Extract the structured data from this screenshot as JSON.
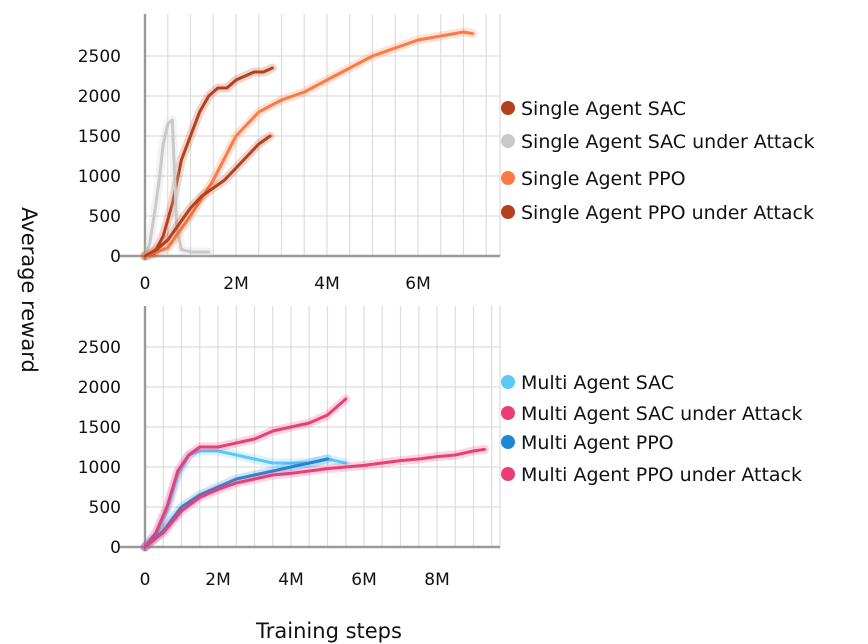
{
  "figure": {
    "ylabel": "Average reward",
    "xlabel": "Training steps"
  },
  "chart_data": [
    {
      "type": "line",
      "xlim": [
        0,
        7500000
      ],
      "ylim": [
        0,
        2900
      ],
      "xticks": [
        0,
        2000000,
        4000000,
        6000000
      ],
      "xtick_labels": [
        "0",
        "2M",
        "4M",
        "6M"
      ],
      "yticks": [
        0,
        500,
        1000,
        1500,
        2000,
        2500
      ],
      "ytick_labels": [
        "0",
        "500",
        "1000",
        "1500",
        "2000",
        "2500"
      ],
      "grid": true,
      "legend_position": "right",
      "series": [
        {
          "name": "Single Agent SAC",
          "color": "#b5401d",
          "x": [
            0,
            200000,
            400000,
            600000,
            800000,
            1000000,
            1200000,
            1400000,
            1600000,
            1800000,
            2000000,
            2200000,
            2400000,
            2600000,
            2800000
          ],
          "y": [
            0,
            30,
            250,
            650,
            1200,
            1500,
            1800,
            2000,
            2100,
            2100,
            2200,
            2250,
            2300,
            2300,
            2350
          ]
        },
        {
          "name": "Single Agent SAC under Attack",
          "color": "#c9c9c9",
          "x": [
            0,
            100000,
            200000,
            300000,
            400000,
            500000,
            600000,
            700000,
            800000,
            1000000,
            1400000
          ],
          "y": [
            0,
            150,
            500,
            900,
            1400,
            1650,
            1700,
            350,
            80,
            50,
            50
          ]
        },
        {
          "name": "Single Agent PPO",
          "color": "#f97b45",
          "x": [
            0,
            500000,
            1000000,
            1500000,
            2000000,
            2500000,
            3000000,
            3500000,
            4000000,
            4500000,
            5000000,
            5500000,
            6000000,
            6500000,
            7000000,
            7200000
          ],
          "y": [
            0,
            100,
            500,
            950,
            1500,
            1800,
            1950,
            2050,
            2200,
            2350,
            2500,
            2600,
            2700,
            2750,
            2800,
            2780
          ]
        },
        {
          "name": "Single Agent PPO under Attack",
          "color": "#b5401d",
          "x": [
            0,
            250000,
            500000,
            750000,
            1000000,
            1250000,
            1500000,
            1750000,
            2000000,
            2250000,
            2500000,
            2750000
          ],
          "y": [
            0,
            80,
            200,
            400,
            600,
            750,
            850,
            950,
            1100,
            1250,
            1400,
            1500
          ]
        }
      ]
    },
    {
      "type": "line",
      "xlim": [
        0,
        9500000
      ],
      "ylim": [
        0,
        2900
      ],
      "xticks": [
        0,
        2000000,
        4000000,
        6000000,
        8000000
      ],
      "xtick_labels": [
        "0",
        "2M",
        "4M",
        "6M",
        "8M"
      ],
      "yticks": [
        0,
        500,
        1000,
        1500,
        2000,
        2500
      ],
      "ytick_labels": [
        "0",
        "500",
        "1000",
        "1500",
        "2000",
        "2500"
      ],
      "grid": true,
      "legend_position": "right",
      "series": [
        {
          "name": "Multi Agent SAC",
          "color": "#5bc8f5",
          "x": [
            0,
            300000,
            600000,
            900000,
            1200000,
            1500000,
            2000000,
            2500000,
            3000000,
            3500000,
            4000000,
            4500000,
            5000000,
            5500000
          ],
          "y": [
            0,
            150,
            450,
            900,
            1150,
            1200,
            1200,
            1150,
            1100,
            1050,
            1050,
            1050,
            1100,
            1050
          ]
        },
        {
          "name": "Multi Agent SAC under Attack",
          "color": "#ea3e7b",
          "x": [
            0,
            300000,
            600000,
            900000,
            1200000,
            1500000,
            2000000,
            2500000,
            3000000,
            3500000,
            4000000,
            4500000,
            5000000,
            5500000
          ],
          "y": [
            0,
            180,
            500,
            950,
            1150,
            1250,
            1250,
            1300,
            1350,
            1450,
            1500,
            1550,
            1650,
            1850
          ]
        },
        {
          "name": "Multi Agent PPO",
          "color": "#1e88d6",
          "x": [
            0,
            500000,
            1000000,
            1500000,
            2000000,
            2500000,
            3000000,
            3500000,
            4000000,
            4500000,
            5000000
          ],
          "y": [
            0,
            200,
            500,
            650,
            750,
            850,
            900,
            950,
            1000,
            1050,
            1100
          ]
        },
        {
          "name": "Multi Agent PPO under Attack",
          "color": "#ea3e7b",
          "x": [
            0,
            500000,
            1000000,
            1500000,
            2000000,
            2500000,
            3000000,
            3500000,
            4000000,
            4500000,
            5000000,
            5500000,
            6000000,
            6500000,
            7000000,
            7500000,
            8000000,
            8500000,
            9000000,
            9300000
          ],
          "y": [
            0,
            180,
            450,
            620,
            720,
            800,
            850,
            900,
            920,
            950,
            980,
            1000,
            1020,
            1050,
            1080,
            1100,
            1130,
            1150,
            1200,
            1220
          ]
        }
      ]
    }
  ]
}
